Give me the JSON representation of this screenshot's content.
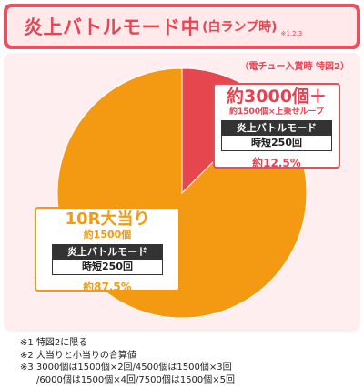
{
  "header": {
    "title": "炎上バトルモード中",
    "subtitle": "(白ランプ時)",
    "note": "※1.2.3"
  },
  "panel_note": "（電チュー入賞時 特図2）",
  "chart_data": {
    "type": "pie",
    "slices": [
      {
        "label": "約3000個＋",
        "sublabel": "約1500個×上乗せループ",
        "mode": "炎上バトルモード",
        "time": "時短250回",
        "percent_label": "約12.5%",
        "value": 12.5,
        "color": "#e6474f"
      },
      {
        "label": "10R大当り",
        "sublabel": "約1500個",
        "mode": "炎上バトルモード",
        "time": "時短250回",
        "percent_label": "約87.5%",
        "value": 87.5,
        "color": "#f39a12"
      }
    ]
  },
  "footnotes": [
    "※1 特図2に限る",
    "※2 大当りと小当りの合算値",
    "※3 3000個は1500個×2回/4500個は1500個×3回",
    "/6000個は1500個×4回/7500個は1500個×5回"
  ]
}
